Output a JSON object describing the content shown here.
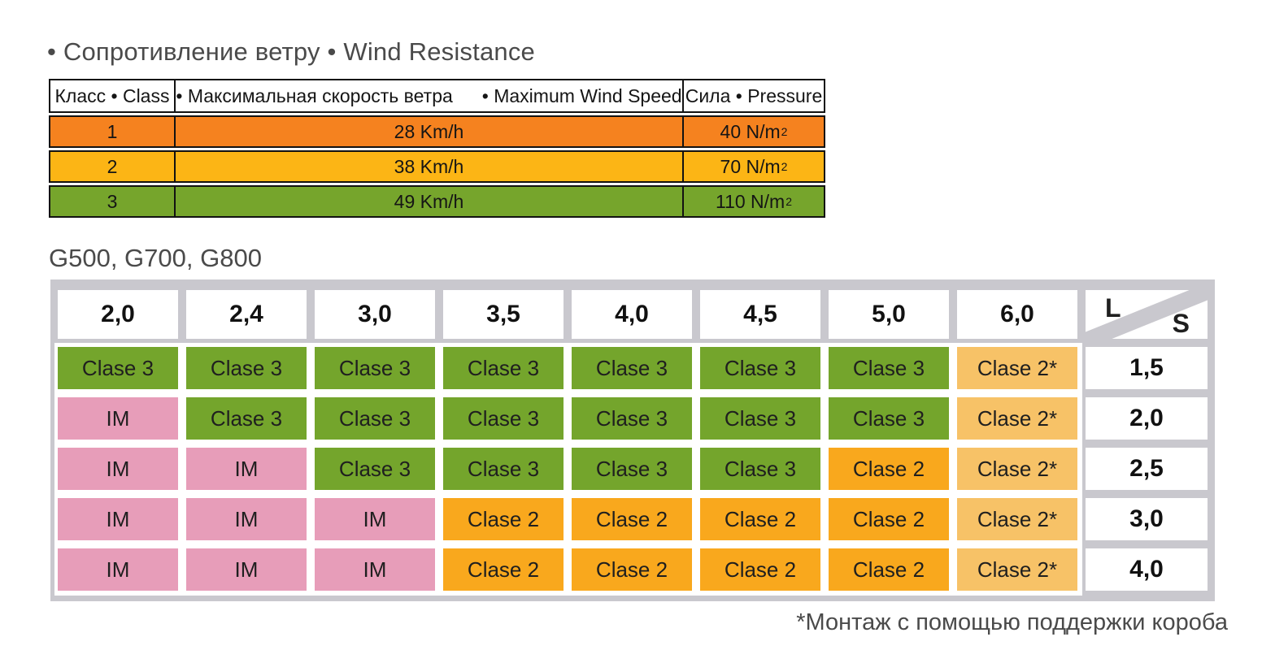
{
  "page": {
    "title": "• Сопротивление ветру • Wind Resistance",
    "subtitle": "G500, G700, G800",
    "footnote": "*Монтаж с помощью поддержки короба"
  },
  "wind_table": {
    "headers": {
      "class": "Класс • Class",
      "speed_ru": "• Максимальная скорость ветра",
      "speed_en": "• Maximum Wind Speed",
      "pressure": "Сила • Pressure"
    },
    "rows": [
      {
        "class": "1",
        "speed": "28 Km/h",
        "pressure": "40 N/m",
        "pressure_exp": "2",
        "color": "#F5821F"
      },
      {
        "class": "2",
        "speed": "38 Km/h",
        "pressure": "70 N/m",
        "pressure_exp": "2",
        "color": "#FCB515"
      },
      {
        "class": "3",
        "speed": "49 Km/h",
        "pressure": "110 N/m",
        "pressure_exp": "2",
        "color": "#76A52C"
      }
    ]
  },
  "size_matrix": {
    "corner": {
      "top_left": "L",
      "bottom_right": "S"
    },
    "col_headers": [
      "2,0",
      "2,4",
      "3,0",
      "3,5",
      "4,0",
      "4,5",
      "5,0",
      "6,0"
    ],
    "row_headers": [
      "1,5",
      "2,0",
      "2,5",
      "3,0",
      "4,0"
    ],
    "rows": [
      [
        "Clase 3",
        "Clase 3",
        "Clase 3",
        "Clase 3",
        "Clase 3",
        "Clase 3",
        "Clase 3",
        "Clase 2*"
      ],
      [
        "IM",
        "Clase 3",
        "Clase 3",
        "Clase 3",
        "Clase 3",
        "Clase 3",
        "Clase 3",
        "Clase 2*"
      ],
      [
        "IM",
        "IM",
        "Clase 3",
        "Clase 3",
        "Clase 3",
        "Clase 3",
        "Clase 2",
        "Clase 2*"
      ],
      [
        "IM",
        "IM",
        "IM",
        "Clase 2",
        "Clase 2",
        "Clase 2",
        "Clase 2",
        "Clase 2*"
      ],
      [
        "IM",
        "IM",
        "IM",
        "Clase 2",
        "Clase 2",
        "Clase 2",
        "Clase 2",
        "Clase 2*"
      ]
    ],
    "legend_colors": {
      "Clase 3": "#74A52C",
      "Clase 2": "#F9A81D",
      "Clase 2*": "#F7C267",
      "IM": "#E79DB9"
    },
    "frame_color": "#C9C8CE"
  }
}
